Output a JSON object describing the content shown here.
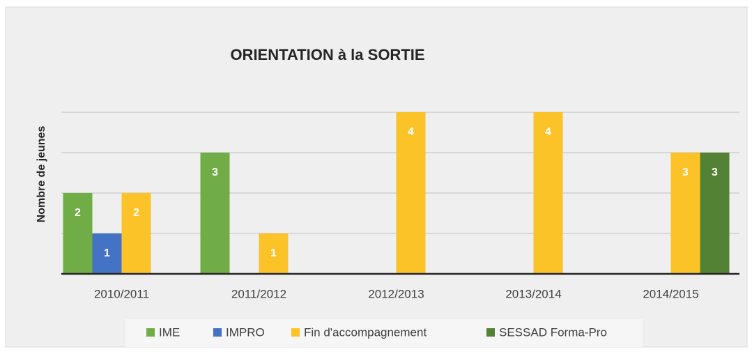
{
  "chart_data": {
    "type": "bar",
    "title": "ORIENTATION à la SORTIE",
    "y_label": "Nombre de jeunes",
    "categories": [
      "2010/2011",
      "2011/2012",
      "2012/2013",
      "2013/2014",
      "2014/2015"
    ],
    "series": [
      {
        "name": "IME",
        "color": "#70ad47",
        "values": [
          2,
          3,
          null,
          null,
          null
        ]
      },
      {
        "name": "IMPRO",
        "color": "#4472c4",
        "values": [
          1,
          null,
          null,
          null,
          null
        ]
      },
      {
        "name": "Fin d'accompagnement",
        "color": "#fbc327",
        "values": [
          2,
          1,
          4,
          4,
          3
        ]
      },
      {
        "name": "SESSAD Forma-Pro",
        "color": "#548235",
        "values": [
          null,
          null,
          null,
          null,
          3
        ]
      }
    ],
    "ylim": [
      0,
      4
    ],
    "yticks": [
      0,
      1,
      2,
      3,
      4
    ],
    "grid": true,
    "legend": "bottom"
  }
}
